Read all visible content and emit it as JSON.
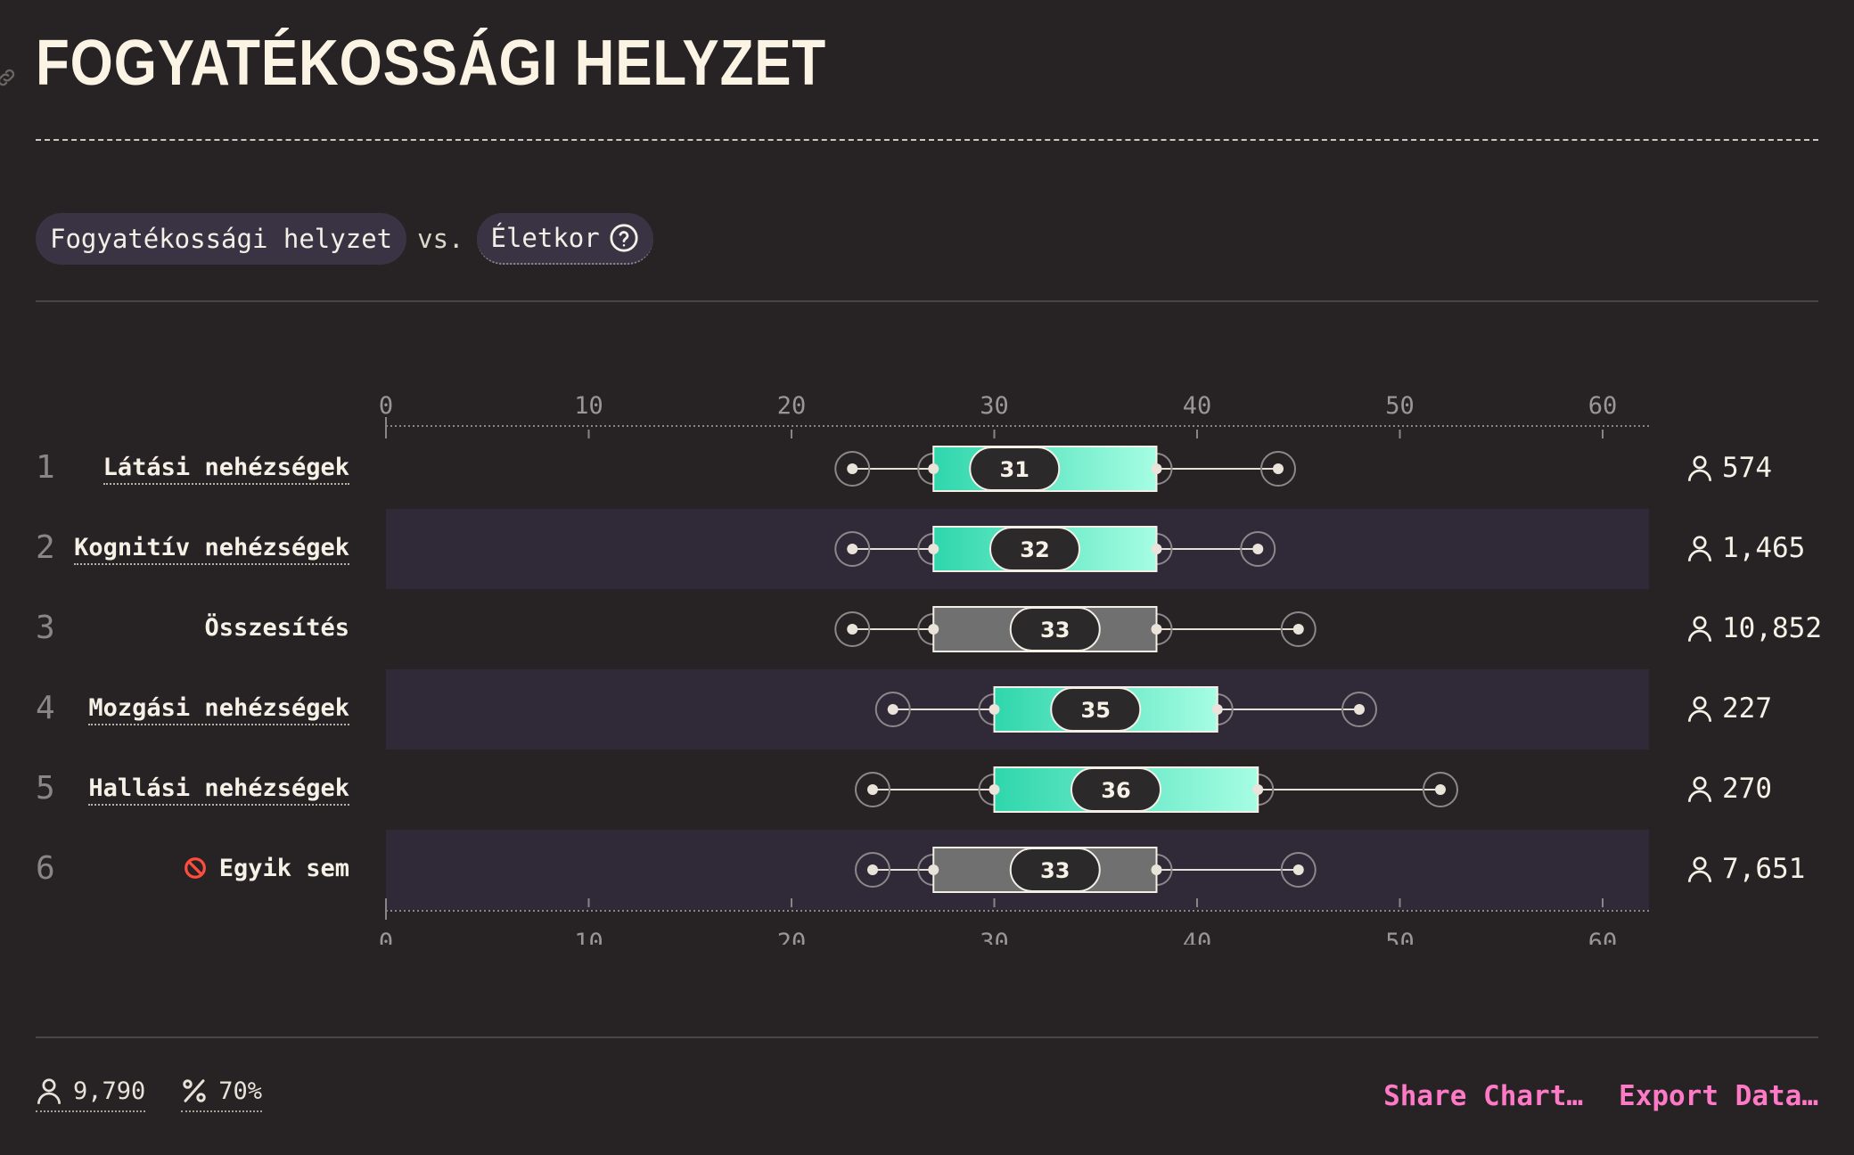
{
  "header": {
    "title": "FOGYATÉKOSSÁGI HELYZET"
  },
  "selector": {
    "primary": "Fogyatékossági helyzet",
    "vs": "vs.",
    "secondary": "Életkor"
  },
  "icons": {
    "link": "link-icon",
    "help": "help-circle-icon",
    "person": "person-icon",
    "percent": "percent-icon",
    "none": "no-entry-icon"
  },
  "colors": {
    "accent_start": "#2fd6ac",
    "accent_end": "#a6fde3",
    "overall_box": "#707070",
    "row_band": "#302a38",
    "action": "#ff7ac6"
  },
  "chart_data": {
    "type": "box",
    "x_axis": {
      "min": 0,
      "max": 62,
      "ticks": [
        0,
        10,
        20,
        30,
        40,
        50,
        60
      ]
    },
    "rows": [
      {
        "rank": "1",
        "label": "Látási nehézségek",
        "dotted": true,
        "icon": "",
        "highlight": true,
        "whisker_low": 23,
        "q1": 27,
        "median": 31,
        "q3": 38,
        "whisker_high": 44,
        "median_label": "31",
        "count": "574"
      },
      {
        "rank": "2",
        "label": "Kognitív nehézségek",
        "dotted": true,
        "icon": "",
        "highlight": true,
        "whisker_low": 23,
        "q1": 27,
        "median": 32,
        "q3": 38,
        "whisker_high": 43,
        "median_label": "32",
        "count": "1,465"
      },
      {
        "rank": "3",
        "label": "Összesítés",
        "dotted": false,
        "icon": "",
        "highlight": false,
        "whisker_low": 23,
        "q1": 27,
        "median": 33,
        "q3": 38,
        "whisker_high": 45,
        "median_label": "33",
        "count": "10,852"
      },
      {
        "rank": "4",
        "label": "Mozgási nehézségek",
        "dotted": true,
        "icon": "",
        "highlight": true,
        "whisker_low": 25,
        "q1": 30,
        "median": 35,
        "q3": 41,
        "whisker_high": 48,
        "median_label": "35",
        "count": "227"
      },
      {
        "rank": "5",
        "label": "Hallási nehézségek",
        "dotted": true,
        "icon": "",
        "highlight": true,
        "whisker_low": 24,
        "q1": 30,
        "median": 36,
        "q3": 43,
        "whisker_high": 52,
        "median_label": "36",
        "count": "270"
      },
      {
        "rank": "6",
        "label": "Egyik sem",
        "dotted": false,
        "icon": "no-entry-icon",
        "highlight": false,
        "whisker_low": 24,
        "q1": 27,
        "median": 33,
        "q3": 38,
        "whisker_high": 45,
        "median_label": "33",
        "count": "7,651"
      }
    ]
  },
  "footer": {
    "respondents": "9,790",
    "percent": "70%",
    "share_label": "Share Chart…",
    "export_label": "Export Data…"
  }
}
